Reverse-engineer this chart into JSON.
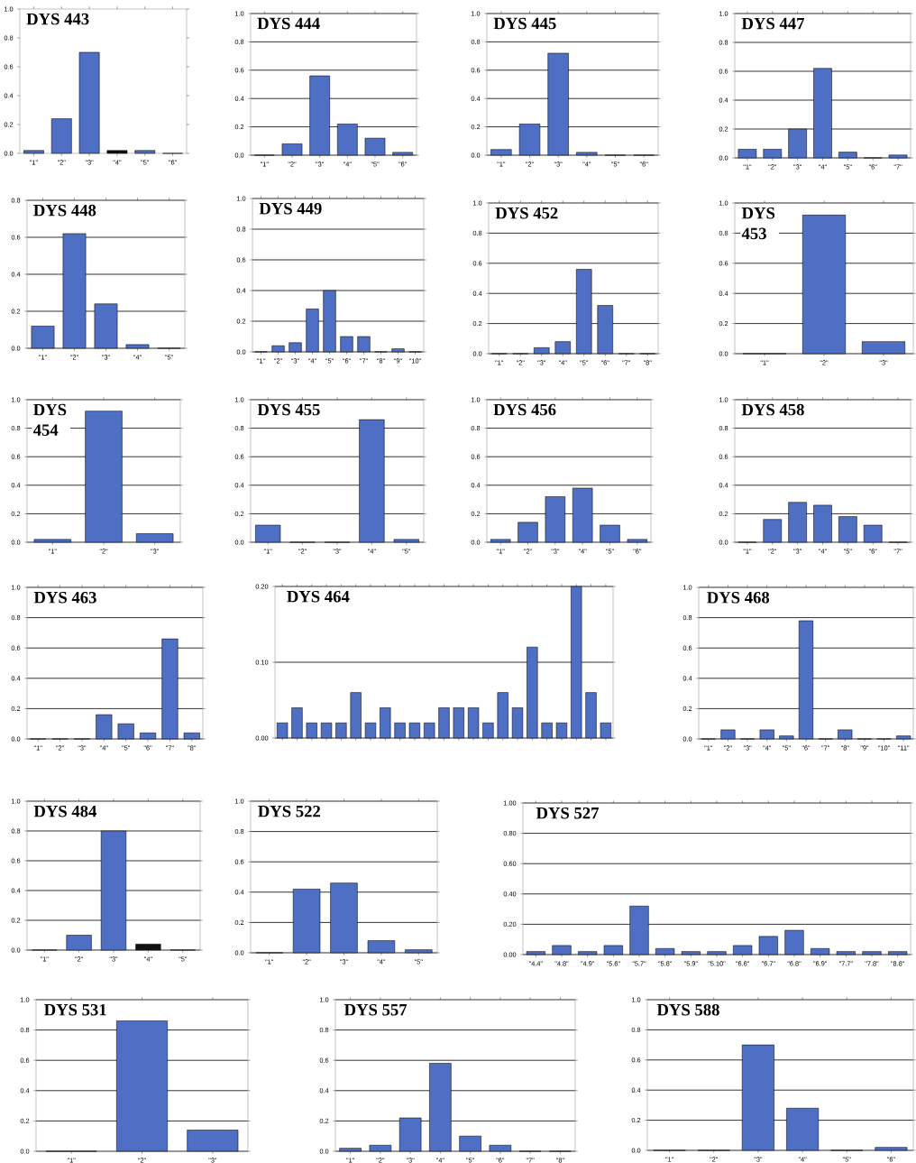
{
  "chart_data": [
    {
      "type": "bar",
      "title": "DYS 443",
      "categories": [
        "\"1\"",
        "\"2\"",
        "\"3\"",
        "\"4\"",
        "\"5\"",
        "\"6\""
      ],
      "values": [
        0.02,
        0.24,
        0.7,
        0.02,
        0.02,
        0
      ],
      "colors": [
        "#4f6fc4",
        "#4f6fc4",
        "#4f6fc4",
        "#111111",
        "#4f6fc4",
        "#4f6fc4"
      ],
      "ylim": [
        0,
        1
      ],
      "yticks": [
        {
          "value": 0,
          "label": "0.0"
        },
        0.2,
        0.4,
        0.6,
        0.8,
        {
          "value": 1,
          "label": "1.0"
        }
      ]
    },
    {
      "type": "bar",
      "title": "DYS 444",
      "categories": [
        "\"1\"",
        "\"2\"",
        "\"3\"",
        "\"4\"",
        "\"5\"",
        "\"6\""
      ],
      "values": [
        0,
        0.08,
        0.56,
        0.22,
        0.12,
        0.02
      ],
      "color": "#4f6fc4",
      "ylim": [
        0,
        1
      ],
      "yticks": [
        {
          "value": 0,
          "label": "0.0"
        },
        0.2,
        0.4,
        0.6,
        0.8,
        {
          "value": 1,
          "label": "1.0"
        }
      ],
      "grid": "y"
    },
    {
      "type": "bar",
      "title": "DYS 445",
      "categories": [
        "\"1\"",
        "\"2\"",
        "\"3\"",
        "\"4\"",
        "\"5\"",
        "\"6\""
      ],
      "values": [
        0.04,
        0.22,
        0.72,
        0.02,
        0,
        0
      ],
      "color": "#4f6fc4",
      "ylim": [
        0,
        1
      ],
      "yticks": [
        {
          "value": 0,
          "label": "0.0"
        },
        0.2,
        0.4,
        0.6,
        0.8,
        {
          "value": 1,
          "label": "1.0"
        }
      ],
      "grid": "y"
    },
    {
      "type": "bar",
      "title": "DYS 447",
      "categories": [
        "\"1\"",
        "\"2\"",
        "\"3\"",
        "\"4\"",
        "\"5\"",
        "\"6\"",
        "\"7\""
      ],
      "values": [
        0.06,
        0.06,
        0.2,
        0.62,
        0.04,
        0,
        0.02
      ],
      "color": "#4f6fc4",
      "ylim": [
        0,
        1
      ],
      "yticks": [
        {
          "value": 0,
          "label": "0.0"
        },
        0.2,
        0.4,
        0.6,
        0.8,
        {
          "value": 1,
          "label": "1.0"
        }
      ],
      "grid": "y"
    },
    {
      "type": "bar",
      "title": "DYS 448",
      "categories": [
        "\"1\"",
        "\"2\"",
        "\"3\"",
        "\"4\"",
        "\"5\""
      ],
      "values": [
        0.12,
        0.62,
        0.24,
        0.02,
        0
      ],
      "color": "#4f6fc4",
      "ylim": [
        0,
        0.8
      ],
      "yticks": [
        {
          "value": 0,
          "label": "0.0"
        },
        0.2,
        0.4,
        0.6,
        0.8
      ],
      "grid": "y"
    },
    {
      "type": "bar",
      "title": "DYS 449",
      "categories": [
        "\"1\"",
        "\"2\"",
        "\"3\"",
        "\"4\"",
        "\"5\"",
        "\"6\"",
        "\"7\"",
        "\"8\"",
        "\"9\"",
        "\"10\""
      ],
      "values": [
        0,
        0.04,
        0.06,
        0.28,
        0.4,
        0.1,
        0.1,
        0,
        0.02,
        0
      ],
      "color": "#4f6fc4",
      "ylim": [
        0,
        1
      ],
      "yticks": [
        {
          "value": 0,
          "label": "0.0"
        },
        0.2,
        0.4,
        0.6,
        0.8,
        {
          "value": 1,
          "label": "1.0"
        }
      ],
      "grid": "y"
    },
    {
      "type": "bar",
      "title": "DYS 452",
      "categories": [
        "\"1\"",
        "\"2\"",
        "\"3\"",
        "\"4\"",
        "\"5\"",
        "\"6\"",
        "\"7\"",
        "\"8\""
      ],
      "values": [
        0,
        0,
        0.04,
        0.08,
        0.56,
        0.32,
        0,
        0
      ],
      "color": "#4f6fc4",
      "ylim": [
        0,
        1
      ],
      "yticks": [
        {
          "value": 0,
          "label": "0.0"
        },
        0.2,
        0.4,
        0.6,
        0.8,
        {
          "value": 1,
          "label": "1.0"
        }
      ],
      "grid": "y"
    },
    {
      "type": "bar",
      "title": "DYS 453",
      "categories": [
        "\"1\"",
        "\"2\"",
        "\"3\""
      ],
      "values": [
        0,
        0.92,
        0.08
      ],
      "color": "#4f6fc4",
      "ylim": [
        0,
        1
      ],
      "yticks": [
        {
          "value": 0,
          "label": "0.0"
        },
        0.2,
        0.4,
        0.6,
        0.8,
        {
          "value": 1,
          "label": "1.0"
        }
      ],
      "grid": "y"
    },
    {
      "type": "bar",
      "title": "DYS 454",
      "categories": [
        "\"1\"",
        "\"2\"",
        "\"3\""
      ],
      "values": [
        0.02,
        0.92,
        0.06
      ],
      "color": "#4f6fc4",
      "ylim": [
        0,
        1
      ],
      "yticks": [
        {
          "value": 0,
          "label": "0.0"
        },
        0.2,
        0.4,
        0.6,
        0.8,
        {
          "value": 1,
          "label": "1.0"
        }
      ],
      "grid": "y"
    },
    {
      "type": "bar",
      "title": "DYS 455",
      "categories": [
        "\"1\"",
        "\"2\"",
        "\"3\"",
        "\"4\"",
        "\"5\""
      ],
      "values": [
        0.12,
        0,
        0,
        0.86,
        0.02
      ],
      "color": "#4f6fc4",
      "ylim": [
        0,
        1
      ],
      "yticks": [
        {
          "value": 0,
          "label": "0.0"
        },
        0.2,
        0.4,
        0.6,
        0.8,
        {
          "value": 1,
          "label": "1.0"
        }
      ],
      "grid": "y"
    },
    {
      "type": "bar",
      "title": "DYS 456",
      "categories": [
        "\"1\"",
        "\"2\"",
        "\"3\"",
        "\"4\"",
        "\"5\"",
        "\"6\""
      ],
      "values": [
        0.02,
        0.14,
        0.32,
        0.38,
        0.12,
        0.02
      ],
      "color": "#4f6fc4",
      "ylim": [
        0,
        1
      ],
      "yticks": [
        {
          "value": 0,
          "label": "0.0"
        },
        0.2,
        0.4,
        0.6,
        0.8,
        {
          "value": 1,
          "label": "1.0"
        }
      ],
      "grid": "y"
    },
    {
      "type": "bar",
      "title": "DYS 458",
      "categories": [
        "\"1\"",
        "\"2\"",
        "\"3\"",
        "\"4\"",
        "\"5\"",
        "\"6\"",
        "\"7\""
      ],
      "values": [
        0,
        0.16,
        0.28,
        0.26,
        0.18,
        0.12,
        0
      ],
      "color": "#4f6fc4",
      "ylim": [
        0,
        1
      ],
      "yticks": [
        {
          "value": 0,
          "label": "0.0"
        },
        0.2,
        0.4,
        0.6,
        0.8,
        {
          "value": 1,
          "label": "1.0"
        }
      ],
      "grid": "y"
    },
    {
      "type": "bar",
      "title": "DYS 463",
      "categories": [
        "\"1\"",
        "\"2\"",
        "\"3\"",
        "\"4\"",
        "\"5\"",
        "\"6\"",
        "\"7\"",
        "\"8\""
      ],
      "values": [
        0,
        0,
        0,
        0.16,
        0.1,
        0.04,
        0.66,
        0.04
      ],
      "color": "#4f6fc4",
      "ylim": [
        0,
        1
      ],
      "yticks": [
        {
          "value": 0,
          "label": "0.0"
        },
        0.2,
        0.4,
        0.6,
        0.8,
        {
          "value": 1,
          "label": "1.0"
        }
      ],
      "grid": "y"
    },
    {
      "type": "bar",
      "title": "DYS 464",
      "categories": [
        null,
        null,
        null,
        null,
        null,
        null,
        null,
        null,
        null,
        null,
        null,
        null,
        null,
        null,
        null,
        null,
        null,
        null,
        null,
        null,
        null,
        null,
        null
      ],
      "values": [
        0.02,
        0.04,
        0.02,
        0.02,
        0.02,
        0.06,
        0.02,
        0.04,
        0.02,
        0.02,
        0.02,
        0.04,
        0.04,
        0.04,
        0.02,
        0.06,
        0.04,
        0.12,
        0.02,
        0.02,
        0.2,
        0.06,
        0.02
      ],
      "color": "#4f6fc4",
      "ylim": [
        0,
        0.2
      ],
      "yticks": [
        {
          "value": 0,
          "label": "0.00"
        },
        {
          "value": 0.1,
          "label": "0.10"
        },
        {
          "value": 0.2,
          "label": "0.20"
        }
      ],
      "grid": "y"
    },
    {
      "type": "bar",
      "title": "DYS 468",
      "categories": [
        "\"1\"",
        "\"2\"",
        "\"3\"",
        "\"4\"",
        "\"5\"",
        "\"6\"",
        "\"7\"",
        "\"8\"",
        "\"9\"",
        "\"10\"",
        "\"11\""
      ],
      "values": [
        0,
        0.06,
        0,
        0.06,
        0.02,
        0.78,
        0,
        0.06,
        0,
        0,
        0.02
      ],
      "color": "#4f6fc4",
      "ylim": [
        0,
        1
      ],
      "yticks": [
        {
          "value": 0,
          "label": "0.0"
        },
        0.2,
        0.4,
        0.6,
        0.8,
        {
          "value": 1,
          "label": "1.0"
        }
      ],
      "grid": "y"
    },
    {
      "type": "bar",
      "title": "DYS 484",
      "categories": [
        "\"1\"",
        "\"2\"",
        "\"3\"",
        "\"4\"",
        "\"5\""
      ],
      "values": [
        0,
        0.1,
        0.8,
        0.04,
        0
      ],
      "colors": [
        "#4f6fc4",
        "#4f6fc4",
        "#4f6fc4",
        "#111111",
        "#4f6fc4"
      ],
      "ylim": [
        0,
        1
      ],
      "yticks": [
        {
          "value": 0,
          "label": "0.0"
        },
        0.2,
        0.4,
        0.6,
        0.8,
        {
          "value": 1,
          "label": "1.0"
        }
      ],
      "grid": "y"
    },
    {
      "type": "bar",
      "title": "DYS 522",
      "categories": [
        "\"1\"",
        "\"2\"",
        "\"3\"",
        "\"4\"",
        "\"5\""
      ],
      "values": [
        0,
        0.42,
        0.46,
        0.08,
        0.02
      ],
      "color": "#4f6fc4",
      "ylim": [
        0,
        1
      ],
      "yticks": [
        {
          "value": 0,
          "label": "0.0"
        },
        0.2,
        0.4,
        0.6,
        0.8,
        {
          "value": 1,
          "label": "1.0"
        }
      ],
      "grid": "y"
    },
    {
      "type": "bar",
      "title": "DYS 527",
      "categories": [
        "\"4.4\"",
        "\"4.8\"",
        "\"4.9\"",
        "\"5.6\"",
        "\"5.7\"",
        "\"5.8\"",
        "\"5.9\"",
        "\"5.10\"",
        "\"6.6\"",
        "\"6.7\"",
        "\"6.8\"",
        "\"6.9\"",
        "\"7.7\"",
        "\"7.8\"",
        "\"8.8\""
      ],
      "values": [
        0.02,
        0.06,
        0.02,
        0.06,
        0.32,
        0.04,
        0.02,
        0.02,
        0.06,
        0.12,
        0.16,
        0.04,
        0.02,
        0.02,
        0.02
      ],
      "color": "#4f6fc4",
      "ylim": [
        0,
        1
      ],
      "yticks": [
        {
          "value": 0,
          "label": "0.00"
        },
        {
          "value": 0.2,
          "label": "0.20"
        },
        {
          "value": 0.4,
          "label": "0.40"
        },
        {
          "value": 0.6,
          "label": "0.60"
        },
        {
          "value": 0.8,
          "label": "0.80"
        },
        {
          "value": 1,
          "label": "1.00"
        }
      ],
      "grid": "y"
    },
    {
      "type": "bar",
      "title": "DYS 531",
      "categories": [
        "\"1\"",
        "\"2\"",
        "\"3\""
      ],
      "values": [
        0,
        0.86,
        0.14
      ],
      "color": "#4f6fc4",
      "ylim": [
        0,
        1
      ],
      "yticks": [
        {
          "value": 0,
          "label": "0.0"
        },
        0.2,
        0.4,
        0.6,
        0.8,
        {
          "value": 1,
          "label": "1.0"
        }
      ],
      "grid": "y"
    },
    {
      "type": "bar",
      "title": "DYS 557",
      "categories": [
        "\"1\"",
        "\"2\"",
        "\"3\"",
        "\"4\"",
        "\"5\"",
        "\"6\"",
        "\"7\"",
        "\"8\""
      ],
      "values": [
        0.02,
        0.04,
        0.22,
        0.58,
        0.1,
        0.04,
        0,
        0
      ],
      "color": "#4f6fc4",
      "ylim": [
        0,
        1
      ],
      "yticks": [
        {
          "value": 0,
          "label": "0.0"
        },
        0.2,
        0.4,
        0.6,
        0.8,
        {
          "value": 1,
          "label": "1.0"
        }
      ],
      "grid": "y"
    },
    {
      "type": "bar",
      "title": "DYS 588",
      "categories": [
        "\"1\"",
        "\"2\"",
        "\"3\"",
        "\"4\"",
        "\"5\"",
        "\"6\""
      ],
      "values": [
        0,
        0,
        0.7,
        0.28,
        0,
        0.02
      ],
      "color": "#4f6fc4",
      "ylim": [
        0,
        1
      ],
      "yticks": [
        {
          "value": 0,
          "label": "0.0"
        },
        0.2,
        0.4,
        0.6,
        0.8,
        {
          "value": 1,
          "label": "1.0"
        }
      ],
      "grid": "y"
    }
  ]
}
